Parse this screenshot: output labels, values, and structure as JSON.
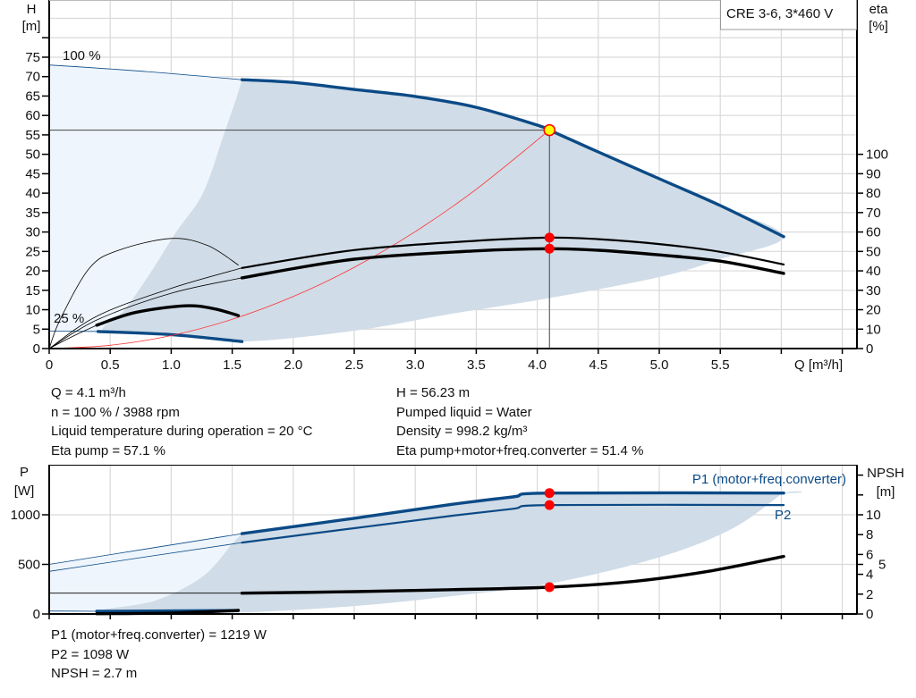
{
  "colors": {
    "curve_blue": "#0b4a86",
    "operating_area": "#d0dce7",
    "extended_area": "#eef5fc",
    "system_curve": "#ff3030",
    "marker_red": "#ff0000",
    "marker_yellow": "#ffff00",
    "grid": "#d9d9d9"
  },
  "info": {
    "left": [
      "Q = 4.1 m³/h",
      "n = 100 % / 3988 rpm",
      "Liquid temperature during operation = 20 °C",
      "Eta pump = 57.1 %"
    ],
    "right": [
      "H = 56.23 m",
      "Pumped liquid = Water",
      "Density = 998.2 kg/m³",
      "Eta pump+motor+freq.converter = 51.4 %"
    ],
    "power": [
      "P1 (motor+freq.converter) = 1219 W",
      "P2 = 1098 W",
      "NPSH = 2.7 m"
    ]
  },
  "chart_data": [
    {
      "type": "line",
      "title": "CRE 3-6, 3*460 V",
      "xlabel": "Q [m³/h]",
      "ylabel": "H",
      "yunit": "[m]",
      "y2label": "eta",
      "y2unit": "[%]",
      "xlim": [
        0,
        6.5
      ],
      "ylim": [
        0,
        90
      ],
      "y2lim": [
        0,
        180
      ],
      "grid": true,
      "xticks": [
        0,
        0.5,
        1,
        1.5,
        2,
        2.5,
        3,
        3.5,
        4,
        4.5,
        5,
        5.5,
        6,
        6.5
      ],
      "xtick_labels": [
        "0",
        "0.5",
        "1.0",
        "1.5",
        "2.0",
        "2.5",
        "3.0",
        "3.5",
        "4.0",
        "4.5",
        "5.0",
        "5.5",
        "",
        ""
      ],
      "yticks": [
        0,
        5,
        10,
        15,
        20,
        25,
        30,
        35,
        40,
        45,
        50,
        55,
        60,
        65,
        70,
        75,
        80
      ],
      "ytick_labels": [
        "0",
        "5",
        "10",
        "15",
        "20",
        "25",
        "30",
        "35",
        "40",
        "45",
        "50",
        "55",
        "60",
        "65",
        "70",
        "75",
        ""
      ],
      "y2ticks": [
        0,
        10,
        20,
        30,
        40,
        50,
        60,
        70,
        80,
        90,
        100
      ],
      "y2tick_labels": [
        "0",
        "10",
        "20",
        "30",
        "40",
        "50",
        "60",
        "70",
        "80",
        "90",
        "100"
      ],
      "curve_labels": [
        "100 %",
        "25 %"
      ],
      "areas": {
        "extended_range": [
          [
            0,
            73
          ],
          [
            0.8,
            71.3
          ],
          [
            1.58,
            69.2
          ],
          [
            1.54,
            65
          ],
          [
            1.43,
            55
          ],
          [
            1.26,
            40
          ],
          [
            1.04,
            30
          ],
          [
            0.84,
            20
          ],
          [
            0.62,
            10
          ],
          [
            0.45,
            4.4
          ],
          [
            0,
            4.5
          ]
        ],
        "operating_range": [
          [
            1.58,
            69.2
          ],
          [
            2,
            68.5
          ],
          [
            2.5,
            66.7
          ],
          [
            3,
            64.9
          ],
          [
            3.5,
            62.1
          ],
          [
            4,
            57.5
          ],
          [
            4.1,
            56.23
          ],
          [
            4.5,
            50.6
          ],
          [
            5,
            43.7
          ],
          [
            5.5,
            36.8
          ],
          [
            6.02,
            28.8
          ],
          [
            5.5,
            23
          ],
          [
            5,
            18.4
          ],
          [
            4.1,
            13
          ],
          [
            3.25,
            8.7
          ],
          [
            2.5,
            4.6
          ],
          [
            1.58,
            1.8
          ],
          [
            1,
            3.6
          ],
          [
            0.45,
            4.4
          ],
          [
            0.62,
            10
          ],
          [
            0.84,
            20
          ],
          [
            1.04,
            30
          ],
          [
            1.26,
            40
          ],
          [
            1.43,
            55
          ],
          [
            1.54,
            65
          ]
        ]
      },
      "series": [
        {
          "axis": "H",
          "speed": "100 %",
          "line": "thin",
          "color": "#0b4a86",
          "points": [
            [
              0,
              73
            ],
            [
              0.8,
              71.3
            ],
            [
              1.58,
              69.2
            ]
          ]
        },
        {
          "axis": "H",
          "speed": "100 %",
          "line": "thick",
          "color": "#0b4a86",
          "points": [
            [
              1.58,
              69.2
            ],
            [
              2,
              68.5
            ],
            [
              2.5,
              66.7
            ],
            [
              3,
              64.9
            ],
            [
              3.5,
              62.1
            ],
            [
              4,
              57.5
            ],
            [
              4.1,
              56.23
            ],
            [
              4.5,
              50.6
            ],
            [
              5,
              43.7
            ],
            [
              5.5,
              36.8
            ],
            [
              6.02,
              28.8
            ]
          ]
        },
        {
          "axis": "H",
          "speed": "25 %",
          "line": "thin",
          "color": "#0b4a86",
          "points": [
            [
              0,
              4.5
            ],
            [
              0.4,
              4.4
            ]
          ]
        },
        {
          "axis": "H",
          "speed": "25 %",
          "line": "thick",
          "color": "#0b4a86",
          "points": [
            [
              0.4,
              4.4
            ],
            [
              1,
              3.6
            ],
            [
              1.58,
              1.8
            ]
          ]
        },
        {
          "axis": "H",
          "line": "system",
          "color": "#ff3030",
          "points": [
            [
              0,
              0
            ],
            [
              0.5,
              0.84
            ],
            [
              1,
              3.34
            ],
            [
              1.5,
              7.52
            ],
            [
              2,
              13.38
            ],
            [
              2.5,
              20.9
            ],
            [
              3,
              30.1
            ],
            [
              3.5,
              41.0
            ],
            [
              4.1,
              56.23
            ]
          ]
        },
        {
          "axis": "eta",
          "speed": "100 %",
          "line": "thin",
          "color": "#000000",
          "points": [
            [
              0,
              0
            ],
            [
              0.4,
              17
            ],
            [
              1,
              31
            ],
            [
              1.58,
              41.5
            ]
          ]
        },
        {
          "axis": "eta",
          "speed": "100 %",
          "line": "medium",
          "color": "#000000",
          "points": [
            [
              1.58,
              41.5
            ],
            [
              2.5,
              50.7
            ],
            [
              3.5,
              55.5
            ],
            [
              4.1,
              57.1
            ],
            [
              4.5,
              56.3
            ],
            [
              5,
              53.8
            ],
            [
              5.5,
              49.8
            ],
            [
              6.02,
              43.3
            ]
          ]
        },
        {
          "axis": "eta",
          "speed": "100 %",
          "line": "thin",
          "color": "#000000",
          "points": [
            [
              0,
              0
            ],
            [
              0.4,
              15
            ],
            [
              1,
              28.5
            ],
            [
              1.58,
              36.4
            ]
          ]
        },
        {
          "axis": "eta",
          "speed": "100 %",
          "line": "thick",
          "color": "#000000",
          "points": [
            [
              1.58,
              36.4
            ],
            [
              2.5,
              46
            ],
            [
              3.5,
              50.3
            ],
            [
              4.1,
              51.4
            ],
            [
              4.5,
              50.6
            ],
            [
              5,
              48.2
            ],
            [
              5.5,
              45
            ],
            [
              6.02,
              38.7
            ]
          ]
        },
        {
          "axis": "eta",
          "speed": "25 %",
          "line": "thin",
          "color": "#000000",
          "points": [
            [
              0,
              0
            ],
            [
              0.09,
              15
            ],
            [
              0.33,
              41.4
            ],
            [
              0.57,
              50.6
            ],
            [
              1.0,
              56.7
            ],
            [
              1.3,
              53
            ],
            [
              1.55,
              43
            ]
          ]
        },
        {
          "axis": "eta",
          "speed": "25 %",
          "line": "thin",
          "color": "#000000",
          "points": [
            [
              0,
              0
            ],
            [
              0.2,
              6.5
            ],
            [
              0.39,
              12
            ]
          ]
        },
        {
          "axis": "eta",
          "speed": "25 %",
          "line": "thick",
          "color": "#000000",
          "points": [
            [
              0.39,
              12
            ],
            [
              0.7,
              18.5
            ],
            [
              1.11,
              22
            ],
            [
              1.35,
              20.5
            ],
            [
              1.55,
              17
            ]
          ]
        }
      ],
      "operating_point": {
        "Q": 4.1,
        "H": 56.23,
        "eta_pump": 57.1,
        "eta_total": 51.4
      }
    },
    {
      "type": "line",
      "xlabel": "",
      "ylabel": "P",
      "yunit": "[W]",
      "y2label": "NPSH",
      "y2unit": "[m]",
      "xlim": [
        0,
        6.5
      ],
      "ylim": [
        0,
        1500
      ],
      "y2lim": [
        0,
        15
      ],
      "grid": true,
      "xticks": [
        0,
        0.5,
        1,
        1.5,
        2,
        2.5,
        3,
        3.5,
        4,
        4.5,
        5,
        5.5,
        6,
        6.5
      ],
      "yticks": [
        0,
        500,
        1000
      ],
      "ytick_labels": [
        "0",
        "500",
        "1000"
      ],
      "y2ticks": [
        0,
        2,
        4,
        5,
        6,
        8,
        10,
        12,
        14
      ],
      "y2tick_labels": [
        "0",
        "2",
        "4",
        "5",
        "6",
        "8",
        "10",
        "",
        ""
      ],
      "series_labels": [
        "P1 (motor+freq.converter)",
        "P2"
      ],
      "areas": {
        "extended_range": [
          [
            0,
            500
          ],
          [
            1.58,
            810
          ],
          [
            1.5,
            710
          ],
          [
            1.26,
            380
          ],
          [
            0.87,
            135
          ],
          [
            0.43,
            36
          ],
          [
            0,
            30
          ]
        ],
        "operating_range": [
          [
            1.58,
            810
          ],
          [
            2.5,
            965
          ],
          [
            3.3,
            1105
          ],
          [
            3.8,
            1180
          ],
          [
            4.1,
            1219
          ],
          [
            6.02,
            1219
          ],
          [
            6.0,
            1207
          ],
          [
            5.59,
            855
          ],
          [
            4.97,
            560
          ],
          [
            4.1,
            306
          ],
          [
            3.3,
            180
          ],
          [
            2.5,
            80
          ],
          [
            1.58,
            15
          ],
          [
            1.0,
            25
          ],
          [
            0.43,
            36
          ],
          [
            0.87,
            135
          ],
          [
            1.26,
            380
          ],
          [
            1.5,
            710
          ]
        ]
      },
      "series": [
        {
          "name": "P1 (motor+freq.converter)",
          "axis": "P",
          "line": "thin",
          "color": "#0b4a86",
          "points": [
            [
              0,
              500
            ],
            [
              1.58,
              810
            ]
          ]
        },
        {
          "name": "P1 (motor+freq.converter)",
          "axis": "P",
          "line": "thick",
          "color": "#0b4a86",
          "points": [
            [
              1.58,
              810
            ],
            [
              2.5,
              965
            ],
            [
              3.3,
              1105
            ],
            [
              3.8,
              1180
            ],
            [
              4.1,
              1219
            ],
            [
              6.02,
              1219
            ]
          ]
        },
        {
          "name": "P2",
          "axis": "P",
          "line": "thin",
          "color": "#0b4a86",
          "points": [
            [
              0,
              430
            ],
            [
              1.58,
              720
            ]
          ]
        },
        {
          "name": "P2",
          "axis": "P",
          "line": "medium",
          "color": "#0b4a86",
          "points": [
            [
              1.58,
              720
            ],
            [
              2.5,
              865
            ],
            [
              3.3,
              990
            ],
            [
              3.8,
              1060
            ],
            [
              4.1,
              1098
            ],
            [
              6.02,
              1098
            ]
          ]
        },
        {
          "axis": "NPSH",
          "line": "thin",
          "color": "#000000",
          "points": [
            [
              0,
              2.1
            ],
            [
              1.58,
              2.1
            ]
          ]
        },
        {
          "axis": "NPSH",
          "line": "thick",
          "color": "#000000",
          "points": [
            [
              1.58,
              2.1
            ],
            [
              2.5,
              2.25
            ],
            [
              3.3,
              2.45
            ],
            [
              4.1,
              2.7
            ],
            [
              4.8,
              3.3
            ],
            [
              5.4,
              4.3
            ],
            [
              6.02,
              5.8
            ]
          ]
        },
        {
          "axis": "P",
          "speed": "25 %",
          "line": "thin",
          "color": "#0b4a86",
          "points": [
            [
              0,
              30
            ],
            [
              0.39,
              27
            ]
          ]
        },
        {
          "axis": "P",
          "speed": "25 %",
          "line": "thick",
          "color": "#0b4a86",
          "points": [
            [
              0.39,
              27
            ],
            [
              1.55,
              35
            ]
          ]
        },
        {
          "axis": "P",
          "speed": "25 %",
          "line": "thick",
          "color": "#000000",
          "points": [
            [
              0.39,
              3
            ],
            [
              1.0,
              10
            ],
            [
              1.55,
              36
            ]
          ]
        }
      ],
      "operating_point": {
        "Q": 4.1,
        "P1": 1219,
        "P2": 1098,
        "NPSH": 2.7
      }
    }
  ]
}
